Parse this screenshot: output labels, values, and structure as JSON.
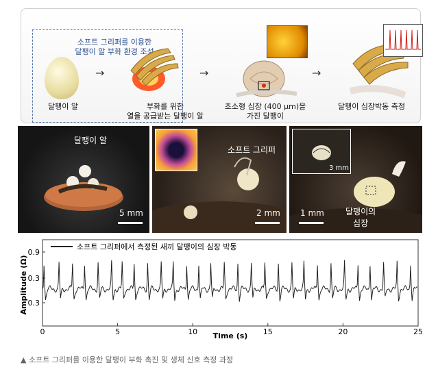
{
  "top": {
    "gripper_title": "소프트 그리퍼를 이용한\n달팽이 알 부화 환경 조성",
    "cap_egg": "달팽이 알",
    "cap_heat": "부화를 위한\n열을 공급받는 달팽이 알",
    "cap_tiny": "초소형 심장 (400 μm)을\n가진 달팽이",
    "cap_measure": "달팽이 심장박동 측정"
  },
  "photos": {
    "p1_label": "달팽이 알",
    "p1_scale": "5 mm",
    "p2_label": "소프트 그리퍼",
    "p2_scale": "2 mm",
    "p3_inset_scale": "3 mm",
    "p3_scale": "1 mm",
    "p3_label": "달팽이의\n심장"
  },
  "chart_data": {
    "type": "line",
    "legend": "소프트 그리퍼에서 측정된 새끼 달팽이의 심장 박동",
    "xlabel": "Time (s)",
    "ylabel": "Amplitude (Ω)",
    "xlim": [
      0,
      25
    ],
    "xticks": [
      0,
      5,
      10,
      15,
      20,
      25
    ],
    "ytick_labels": [
      "0.9",
      "0.3",
      "0.3"
    ],
    "beats_x": [
      0.1,
      1.1,
      2.0,
      2.8,
      3.7,
      4.6,
      5.3,
      6.1,
      7.0,
      7.9,
      8.7,
      9.6,
      10.4,
      11.2,
      12.1,
      13.0,
      13.9,
      14.8,
      15.7,
      16.6,
      17.4,
      18.3,
      19.2,
      20.1,
      21.0,
      21.8,
      22.7,
      23.6,
      24.5
    ],
    "colors": {
      "line": "#222222",
      "frame": "#333333"
    }
  },
  "caption": "▲ 소프트 그리퍼를 이용한 달팽이 부화 촉진 및 생체 신호 측정 과정"
}
